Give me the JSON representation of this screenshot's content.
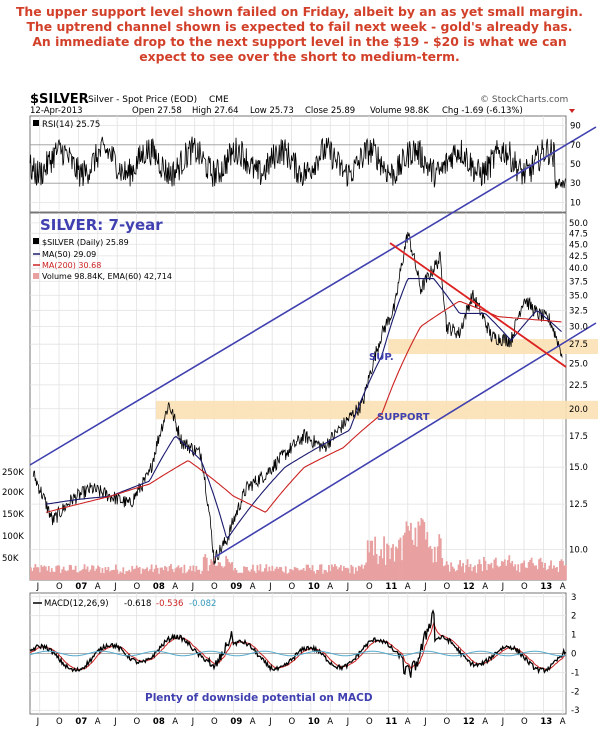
{
  "caption": {
    "lines": [
      "The upper support level shown failed on Friday, albeit by an as yet small margin.",
      "The uptrend channel shown is expected to fail next week - gold's already has.",
      "An immediate drop to the next support level in the $19 - $20 is what we can",
      "expect to see over the short to medium-term."
    ]
  },
  "header": {
    "symbol": "$SILVER",
    "description": "Silver - Spot Price (EOD)",
    "exchange": "CME",
    "watermark": "© StockCharts.com",
    "date": "12-Apr-2013",
    "open": "Open 27.58",
    "high": "High 27.64",
    "low": "Low 25.73",
    "close": "Close 25.89",
    "volume": "Volume 98.8K",
    "change": "Chg -1.69 (-6.13%)"
  },
  "colors": {
    "caption": "#d2402a",
    "channel": "#4040b0",
    "support_band": "#fbe1b4",
    "price": "#000000",
    "ma50": "#1a1a6e",
    "ma200": "#cc2222",
    "volume": "#e8a0a0",
    "trend_line": "#dd2222",
    "rsi": "#000000",
    "macd": "#000000",
    "macd_signal": "#cc2222",
    "macd_hist": "#55aacc",
    "annotation": "#4040b0"
  },
  "chart_data": [
    {
      "type": "line",
      "panel": "RSI",
      "label": "RSI(14) 25.75",
      "y_ticks": [
        90,
        70,
        50,
        30,
        10
      ],
      "ylim": [
        0,
        100
      ],
      "last_value": 25.75
    },
    {
      "type": "line",
      "panel": "Price",
      "title": "SILVER: 7-year",
      "scale": "log",
      "ylim": [
        8.5,
        52
      ],
      "y_ticks": [
        50.0,
        47.5,
        45.0,
        42.5,
        40.0,
        37.5,
        35.0,
        32.5,
        30.0,
        27.5,
        25.0,
        22.5,
        20.0,
        17.5,
        15.0,
        12.5,
        10.0
      ],
      "x_ticks": [
        "J",
        "O",
        "07",
        "A",
        "J",
        "O",
        "08",
        "A",
        "J",
        "O",
        "09",
        "A",
        "J",
        "O",
        "10",
        "A",
        "J",
        "O",
        "11",
        "A",
        "J",
        "O",
        "12",
        "A",
        "J",
        "O",
        "13",
        "A"
      ],
      "volume_ticks": [
        "250K",
        "200K",
        "150K",
        "100K",
        "50K"
      ],
      "legend": [
        "$SILVER (Daily) 25.89",
        "MA(50) 29.09",
        "MA(200) 30.68",
        "Volume 98.84K, EMA(60) 42,714"
      ],
      "annotations": [
        "SUP.",
        "SUPPORT"
      ],
      "support_bands": [
        [
          26.2,
          28.2
        ],
        [
          19.0,
          20.8
        ]
      ],
      "series": [
        {
          "name": "$SILVER (Daily)",
          "x": [
            "2006-06",
            "2006-09",
            "2006-12",
            "2007-03",
            "2007-06",
            "2007-09",
            "2007-12",
            "2008-03",
            "2008-05",
            "2008-08",
            "2008-10",
            "2008-12",
            "2009-03",
            "2009-06",
            "2009-09",
            "2009-12",
            "2010-03",
            "2010-06",
            "2010-09",
            "2010-12",
            "2011-02",
            "2011-04",
            "2011-06",
            "2011-09",
            "2011-10",
            "2011-12",
            "2012-02",
            "2012-05",
            "2012-08",
            "2012-10",
            "2012-12",
            "2013-02",
            "2013-04"
          ],
          "values": [
            14.5,
            11.5,
            12.8,
            13.5,
            13.0,
            12.5,
            14.5,
            20.5,
            17.0,
            16.0,
            9.5,
            10.5,
            13.5,
            14.5,
            16.0,
            17.5,
            16.5,
            18.5,
            20.5,
            29.0,
            33.0,
            47.5,
            36.0,
            42.0,
            30.0,
            29.0,
            35.0,
            28.5,
            28.0,
            34.5,
            32.0,
            31.0,
            25.89
          ]
        },
        {
          "name": "MA(50)",
          "x": [
            "2006-08",
            "2007-01",
            "2007-06",
            "2007-12",
            "2008-04",
            "2008-08",
            "2008-12",
            "2009-04",
            "2009-09",
            "2010-02",
            "2010-07",
            "2010-12",
            "2011-04",
            "2011-08",
            "2011-12",
            "2012-04",
            "2012-08",
            "2012-12",
            "2013-04"
          ],
          "values": [
            12.5,
            12.8,
            13.0,
            14.0,
            17.5,
            15.5,
            10.5,
            12.5,
            15.0,
            16.5,
            18.0,
            26.0,
            38.0,
            38.0,
            32.0,
            32.0,
            28.0,
            32.5,
            29.09
          ]
        },
        {
          "name": "MA(200)",
          "x": [
            "2006-08",
            "2007-01",
            "2007-06",
            "2007-12",
            "2008-06",
            "2009-01",
            "2009-06",
            "2009-12",
            "2010-06",
            "2010-12",
            "2011-06",
            "2011-12",
            "2012-06",
            "2012-12",
            "2013-04"
          ],
          "values": [
            12.0,
            12.5,
            13.0,
            13.8,
            15.5,
            13.0,
            12.0,
            15.0,
            16.5,
            19.5,
            30.0,
            34.0,
            31.5,
            31.0,
            30.68
          ]
        }
      ]
    },
    {
      "type": "line",
      "panel": "MACD",
      "label": "MACD(12,26,9)",
      "values_shown": [
        -0.618,
        -0.536,
        -0.082
      ],
      "y_ticks": [
        3,
        2,
        1,
        0,
        -1,
        -2,
        -3
      ],
      "ylim": [
        -3,
        3
      ],
      "annotation": "Plenty of downside potential on MACD"
    }
  ]
}
